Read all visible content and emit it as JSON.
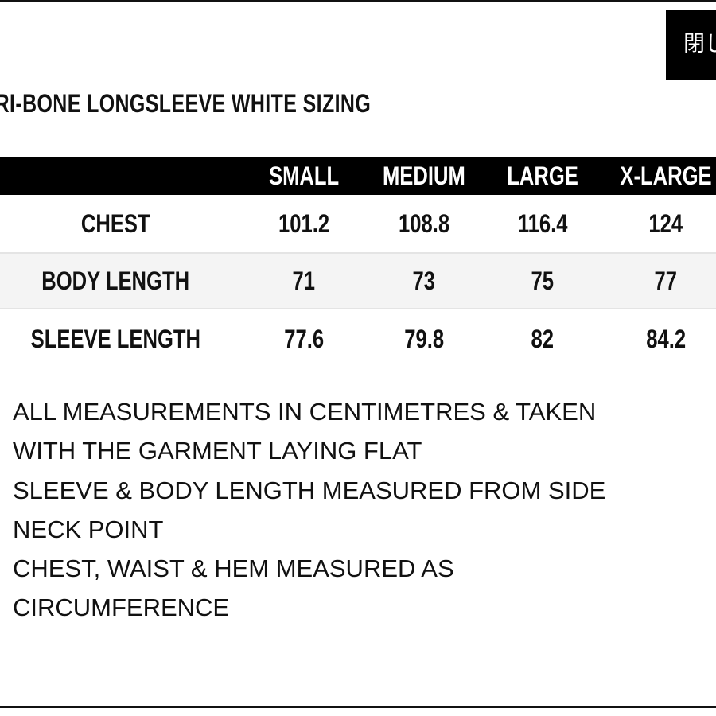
{
  "close_button": {
    "label": "閉じ"
  },
  "title": "TRI-BONE LONGSLEEVE WHITE SIZING",
  "table": {
    "columns": [
      "",
      "SMALL",
      "MEDIUM",
      "LARGE",
      "X-LARGE"
    ],
    "rows": [
      {
        "label": "CHEST",
        "values": [
          "101.2",
          "108.8",
          "116.4",
          "124"
        ]
      },
      {
        "label": "BODY LENGTH",
        "values": [
          "71",
          "73",
          "75",
          "77"
        ]
      },
      {
        "label": "SLEEVE LENGTH",
        "values": [
          "77.6",
          "79.8",
          "82",
          "84.2"
        ]
      }
    ]
  },
  "notes": [
    "ALL MEASUREMENTS IN CENTIMETRES & TAKEN",
    "WITH THE GARMENT LAYING FLAT",
    "SLEEVE & BODY LENGTH MEASURED FROM SIDE",
    "NECK POINT",
    "CHEST, WAIST & HEM MEASURED AS",
    "CIRCUMFERENCE"
  ]
}
